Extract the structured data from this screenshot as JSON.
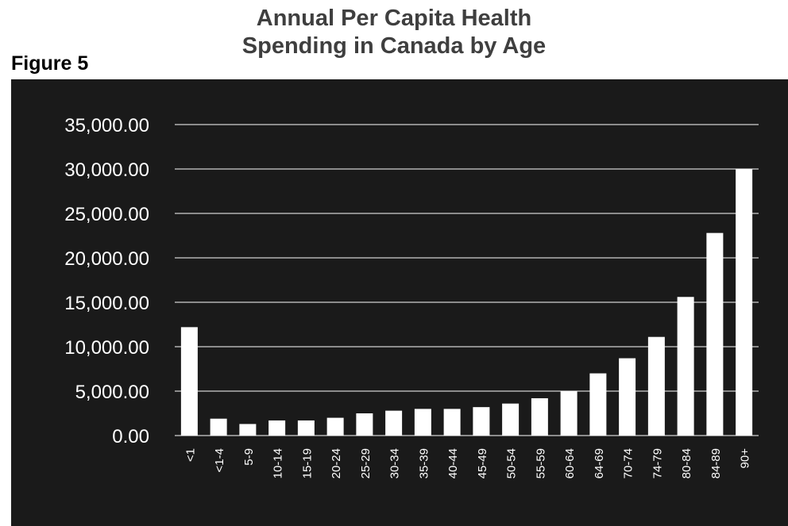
{
  "header": {
    "title_line1": "Annual Per Capita Health",
    "title_line2": "Spending in Canada by Age",
    "figure_label": "Figure 5"
  },
  "colors": {
    "panel_bg": "#1a1a1a",
    "bar": "#ffffff",
    "gridline": "#ffffff",
    "tick_text": "#ffffff",
    "title_text": "#3f3f3f"
  },
  "chart_data": {
    "type": "bar",
    "title": "Annual Per Capita Health Spending in Canada by Age",
    "xlabel": "",
    "ylabel": "",
    "ylim": [
      0,
      35000
    ],
    "yticks": [
      0,
      5000,
      10000,
      15000,
      20000,
      25000,
      30000,
      35000
    ],
    "ytick_labels": [
      "0.00",
      "5,000.00",
      "10,000.00",
      "15,000.00",
      "20,000.00",
      "25,000.00",
      "30,000.00",
      "35,000.00"
    ],
    "grid": true,
    "legend": "none",
    "categories": [
      "<1",
      "<1-4",
      "5-9",
      "10-14",
      "15-19",
      "20-24",
      "25-29",
      "30-34",
      "35-39",
      "40-44",
      "45-49",
      "50-54",
      "55-59",
      "60-64",
      "64-69",
      "70-74",
      "74-79",
      "80-84",
      "84-89",
      "90+"
    ],
    "values": [
      12200,
      1900,
      1300,
      1700,
      1700,
      2000,
      2500,
      2800,
      3000,
      3000,
      3200,
      3600,
      4200,
      5000,
      7000,
      8700,
      11100,
      15600,
      22800,
      30000
    ]
  }
}
